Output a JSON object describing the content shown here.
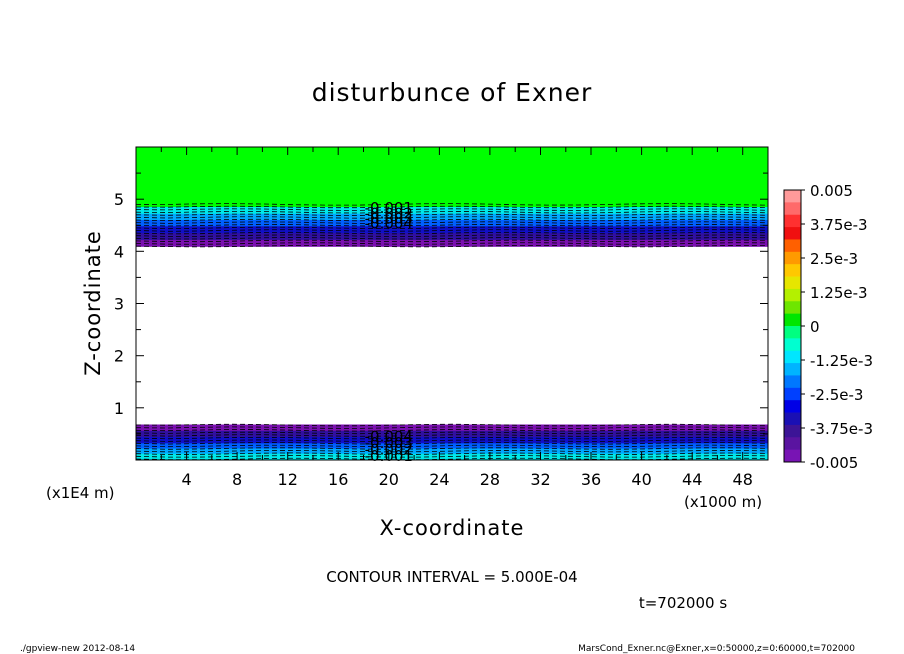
{
  "chart_data": {
    "type": "heatmap",
    "title": "disturbunce of Exner",
    "xlabel": "X-coordinate",
    "ylabel": "Z-coordinate",
    "x_unit": "(x1000 m)",
    "y_unit": "(x1E4 m)",
    "xlim": [
      0,
      50
    ],
    "ylim": [
      0,
      6
    ],
    "x_ticks": [
      4,
      8,
      12,
      16,
      20,
      24,
      28,
      32,
      36,
      40,
      44,
      48
    ],
    "y_ticks": [
      1,
      2,
      3,
      4,
      5
    ],
    "contour_interval_text": "CONTOUR INTERVAL = 5.000E-04",
    "time_text": "t=702000 s",
    "contour_labels": [
      {
        "text": "-0.001",
        "x": 20,
        "y": 4.83
      },
      {
        "text": "-0.002",
        "x": 20,
        "y": 4.73
      },
      {
        "text": "-0.003",
        "x": 20,
        "y": 4.63
      },
      {
        "text": "-0.004",
        "x": 20,
        "y": 4.53
      },
      {
        "text": "-0.004",
        "x": 20,
        "y": 0.45
      },
      {
        "text": "-0.003",
        "x": 20,
        "y": 0.33
      },
      {
        "text": "-0.002",
        "x": 20,
        "y": 0.2
      },
      {
        "text": "-0.001",
        "x": 20,
        "y": 0.08
      }
    ],
    "bands": [
      {
        "from": 4.85,
        "to": 6.0,
        "value": -0.0003,
        "level": "0 to -1.25e-3",
        "color": "#00ff00"
      },
      {
        "from": 4.72,
        "to": 4.85,
        "value": -0.0014,
        "level": "-1.25e-3",
        "color": "#00e8e8"
      },
      {
        "from": 4.6,
        "to": 4.72,
        "value": -0.0024,
        "level": "-2.5e-3",
        "color": "#00a8ff"
      },
      {
        "from": 4.48,
        "to": 4.6,
        "value": -0.0033,
        "level": "-3.25e-3",
        "color": "#0060ff"
      },
      {
        "from": 4.35,
        "to": 4.48,
        "value": -0.0041,
        "level": "-3.75e-3",
        "color": "#1010c8"
      },
      {
        "from": 4.22,
        "to": 4.35,
        "value": -0.0045,
        "level": "-4.5e-3",
        "color": "#3010a0"
      },
      {
        "from": 4.1,
        "to": 4.22,
        "value": -0.0049,
        "level": "-0.005",
        "color": "#7a10b0"
      },
      {
        "from": 0.56,
        "to": 0.68,
        "value": -0.0049,
        "level": "-0.005",
        "color": "#7a10b0"
      },
      {
        "from": 0.44,
        "to": 0.56,
        "value": -0.0045,
        "level": "-4.5e-3",
        "color": "#3010a0"
      },
      {
        "from": 0.32,
        "to": 0.44,
        "value": -0.0041,
        "level": "-3.75e-3",
        "color": "#1010c8"
      },
      {
        "from": 0.22,
        "to": 0.32,
        "value": -0.0033,
        "level": "-3.25e-3",
        "color": "#0060ff"
      },
      {
        "from": 0.12,
        "to": 0.22,
        "value": -0.0024,
        "level": "-2.5e-3",
        "color": "#00a8ff"
      },
      {
        "from": 0.0,
        "to": 0.12,
        "value": -0.0014,
        "level": "-1.25e-3",
        "color": "#00e8e8"
      }
    ],
    "colorbar": {
      "range": [
        -0.005,
        0.005
      ],
      "labels": [
        "0.005",
        "3.75e-3",
        "2.5e-3",
        "1.25e-3",
        "0",
        "-1.25e-3",
        "-2.5e-3",
        "-3.75e-3",
        "-0.005"
      ],
      "label_values": [
        0.005,
        0.00375,
        0.0025,
        0.00125,
        0,
        -0.00125,
        -0.0025,
        -0.00375,
        -0.005
      ],
      "colors": [
        "#ff9a9a",
        "#ff6a6a",
        "#ff3030",
        "#f01010",
        "#ff6000",
        "#ff9a00",
        "#ffc800",
        "#e6e600",
        "#b4f000",
        "#6ee600",
        "#00e600",
        "#00ff80",
        "#00ffd0",
        "#00e6ff",
        "#00b4ff",
        "#0078ff",
        "#0040ff",
        "#0000e6",
        "#1a10b4",
        "#3c1496",
        "#5a14a0",
        "#7814b4"
      ]
    }
  },
  "footer": {
    "left": "./gpview-new   2012-08-14",
    "right": "MarsCond_Exner.nc@Exner,x=0:50000,z=0:60000,t=702000"
  }
}
